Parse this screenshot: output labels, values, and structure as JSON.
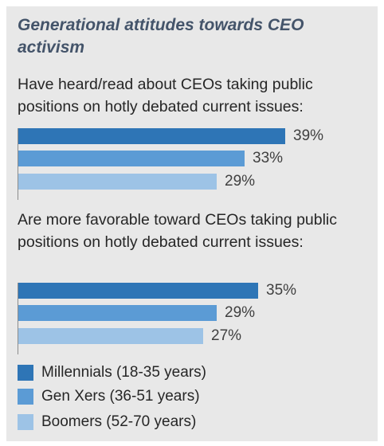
{
  "title": "Generational attitudes towards CEO activism",
  "colors": {
    "millennials": "#2e75b6",
    "genx": "#5b9bd5",
    "boomers": "#9dc3e6",
    "background": "#e8e8e8"
  },
  "chart_data": [
    {
      "type": "bar",
      "title": "Have heard/read about CEOs taking public positions on hotly debated current issues:",
      "categories": [
        "Millennials (18-35 years)",
        "Gen Xers (36-51 years)",
        "Boomers (52-70 years)"
      ],
      "values": [
        39,
        33,
        29
      ],
      "labels": [
        "39%",
        "33%",
        "29%"
      ],
      "xlim": [
        0,
        50
      ],
      "grid": false
    },
    {
      "type": "bar",
      "title": "Are more favorable toward CEOs taking public positions on hotly debated current issues:",
      "categories": [
        "Millennials (18-35 years)",
        "Gen Xers (36-51 years)",
        "Boomers (52-70 years)"
      ],
      "values": [
        35,
        29,
        27
      ],
      "labels": [
        "35%",
        "29%",
        "27%"
      ],
      "xlim": [
        0,
        50
      ],
      "grid": false
    }
  ],
  "legend": {
    "position": "bottom",
    "items": [
      {
        "label": "Millennials (18-35 years)",
        "color": "#2e75b6"
      },
      {
        "label": "Gen Xers (36-51 years)",
        "color": "#5b9bd5"
      },
      {
        "label": "Boomers (52-70 years)",
        "color": "#9dc3e6"
      }
    ]
  }
}
